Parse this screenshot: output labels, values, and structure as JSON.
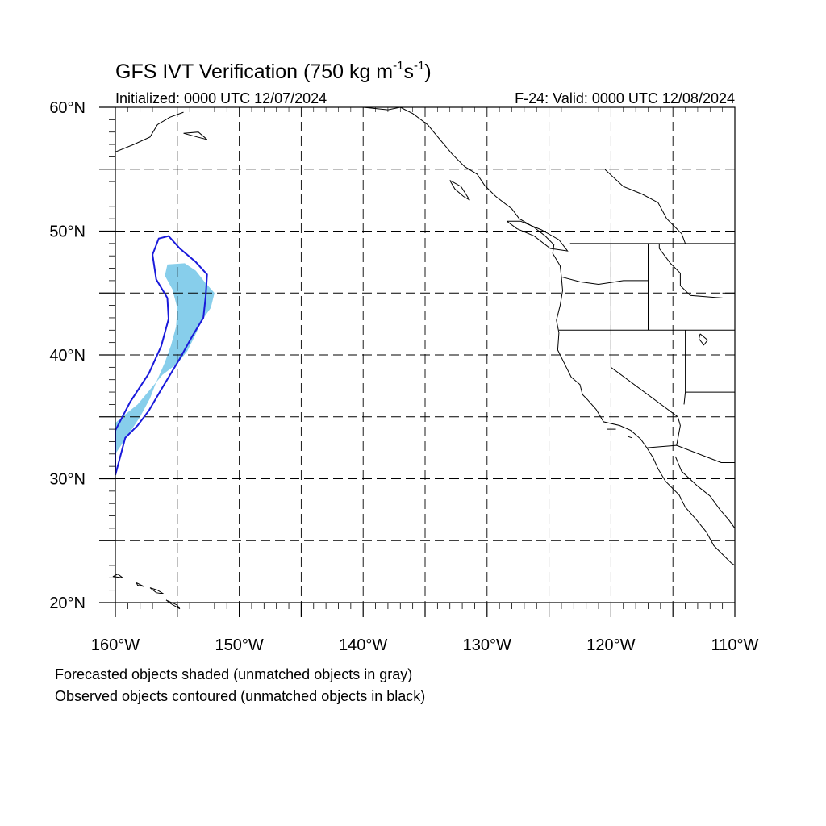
{
  "title": {
    "main": "GFS IVT Verification (750 kg m",
    "exp1": "-1",
    "mid": "s",
    "exp2": "-1",
    "end": ")"
  },
  "subtitle": {
    "left": "Initialized: 0000 UTC 12/07/2024",
    "right": "F-24: Valid: 0000 UTC 12/08/2024"
  },
  "axes": {
    "lon_range": [
      -160,
      -110
    ],
    "lat_range": [
      20,
      60
    ],
    "lon_ticks": [
      {
        "value": -160,
        "label": "160°W"
      },
      {
        "value": -150,
        "label": "150°W"
      },
      {
        "value": -140,
        "label": "140°W"
      },
      {
        "value": -130,
        "label": "130°W"
      },
      {
        "value": -120,
        "label": "120°W"
      },
      {
        "value": -110,
        "label": "110°W"
      }
    ],
    "lat_ticks": [
      {
        "value": 60,
        "label": "60°N"
      },
      {
        "value": 50,
        "label": "50°N"
      },
      {
        "value": 40,
        "label": "40°N"
      },
      {
        "value": 30,
        "label": "30°N"
      },
      {
        "value": 20,
        "label": "20°N"
      }
    ],
    "grid_spacing_deg": 5,
    "grid": true
  },
  "colors": {
    "forecast_fill": "#87ceeb",
    "observed_contour": "#1a1adb",
    "coast": "#000000",
    "grid": "#000000"
  },
  "captions": {
    "line1": "Forecasted objects shaded (unmatched objects in gray)",
    "line2": "Observed objects contoured (unmatched objects in black)"
  },
  "objects": {
    "forecast": [
      [
        -155.8,
        47.3
      ],
      [
        -154.4,
        47.4
      ],
      [
        -153.5,
        46.8
      ],
      [
        -152.8,
        45.9
      ],
      [
        -152.0,
        45.0
      ],
      [
        -152.3,
        43.8
      ],
      [
        -153.0,
        42.8
      ],
      [
        -153.6,
        41.5
      ],
      [
        -154.2,
        40.3
      ],
      [
        -155.0,
        39.3
      ],
      [
        -156.2,
        38.4
      ],
      [
        -157.2,
        37.2
      ],
      [
        -158.2,
        36.0
      ],
      [
        -159.2,
        35.2
      ],
      [
        -160.0,
        34.5
      ],
      [
        -160.0,
        32.0
      ],
      [
        -159.0,
        33.5
      ],
      [
        -158.0,
        35.0
      ],
      [
        -157.2,
        36.5
      ],
      [
        -156.7,
        37.8
      ],
      [
        -156.0,
        39.4
      ],
      [
        -155.5,
        40.8
      ],
      [
        -155.1,
        42.3
      ],
      [
        -155.0,
        43.8
      ],
      [
        -155.4,
        45.3
      ],
      [
        -156.0,
        46.4
      ]
    ],
    "observed": [
      [
        -156.5,
        49.4
      ],
      [
        -155.7,
        49.6
      ],
      [
        -154.8,
        48.6
      ],
      [
        -153.5,
        47.5
      ],
      [
        -152.6,
        46.5
      ],
      [
        -152.7,
        44.8
      ],
      [
        -152.9,
        43.0
      ],
      [
        -153.8,
        41.5
      ],
      [
        -154.8,
        39.7
      ],
      [
        -156.3,
        37.2
      ],
      [
        -157.3,
        35.5
      ],
      [
        -158.2,
        34.3
      ],
      [
        -159.2,
        33.3
      ],
      [
        -160.0,
        30.3
      ],
      [
        -160.0,
        33.9
      ],
      [
        -158.8,
        36.2
      ],
      [
        -157.3,
        38.5
      ],
      [
        -156.3,
        40.7
      ],
      [
        -155.7,
        42.9
      ],
      [
        -155.8,
        44.6
      ],
      [
        -156.7,
        46.1
      ],
      [
        -157.0,
        48.1
      ]
    ]
  }
}
